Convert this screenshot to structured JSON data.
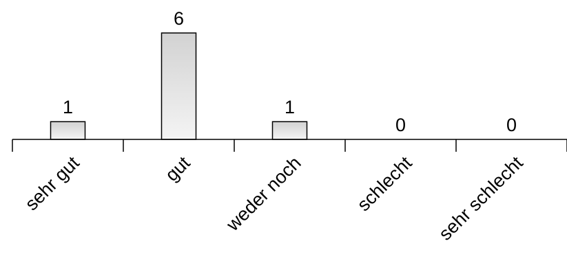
{
  "chart_data": {
    "type": "bar",
    "title": "",
    "xlabel": "",
    "ylabel": "",
    "categories": [
      "sehr gut",
      "gut",
      "weder noch",
      "schlecht",
      "sehr schlecht"
    ],
    "values": [
      1,
      6,
      1,
      0,
      0
    ],
    "ylim": [
      0,
      6
    ],
    "grid": false,
    "legend": "none",
    "data_labels": true,
    "bar_fill_top": "#d2d2d2",
    "bar_fill_bottom": "#f4f4f4",
    "bar_stroke": "#000000"
  }
}
